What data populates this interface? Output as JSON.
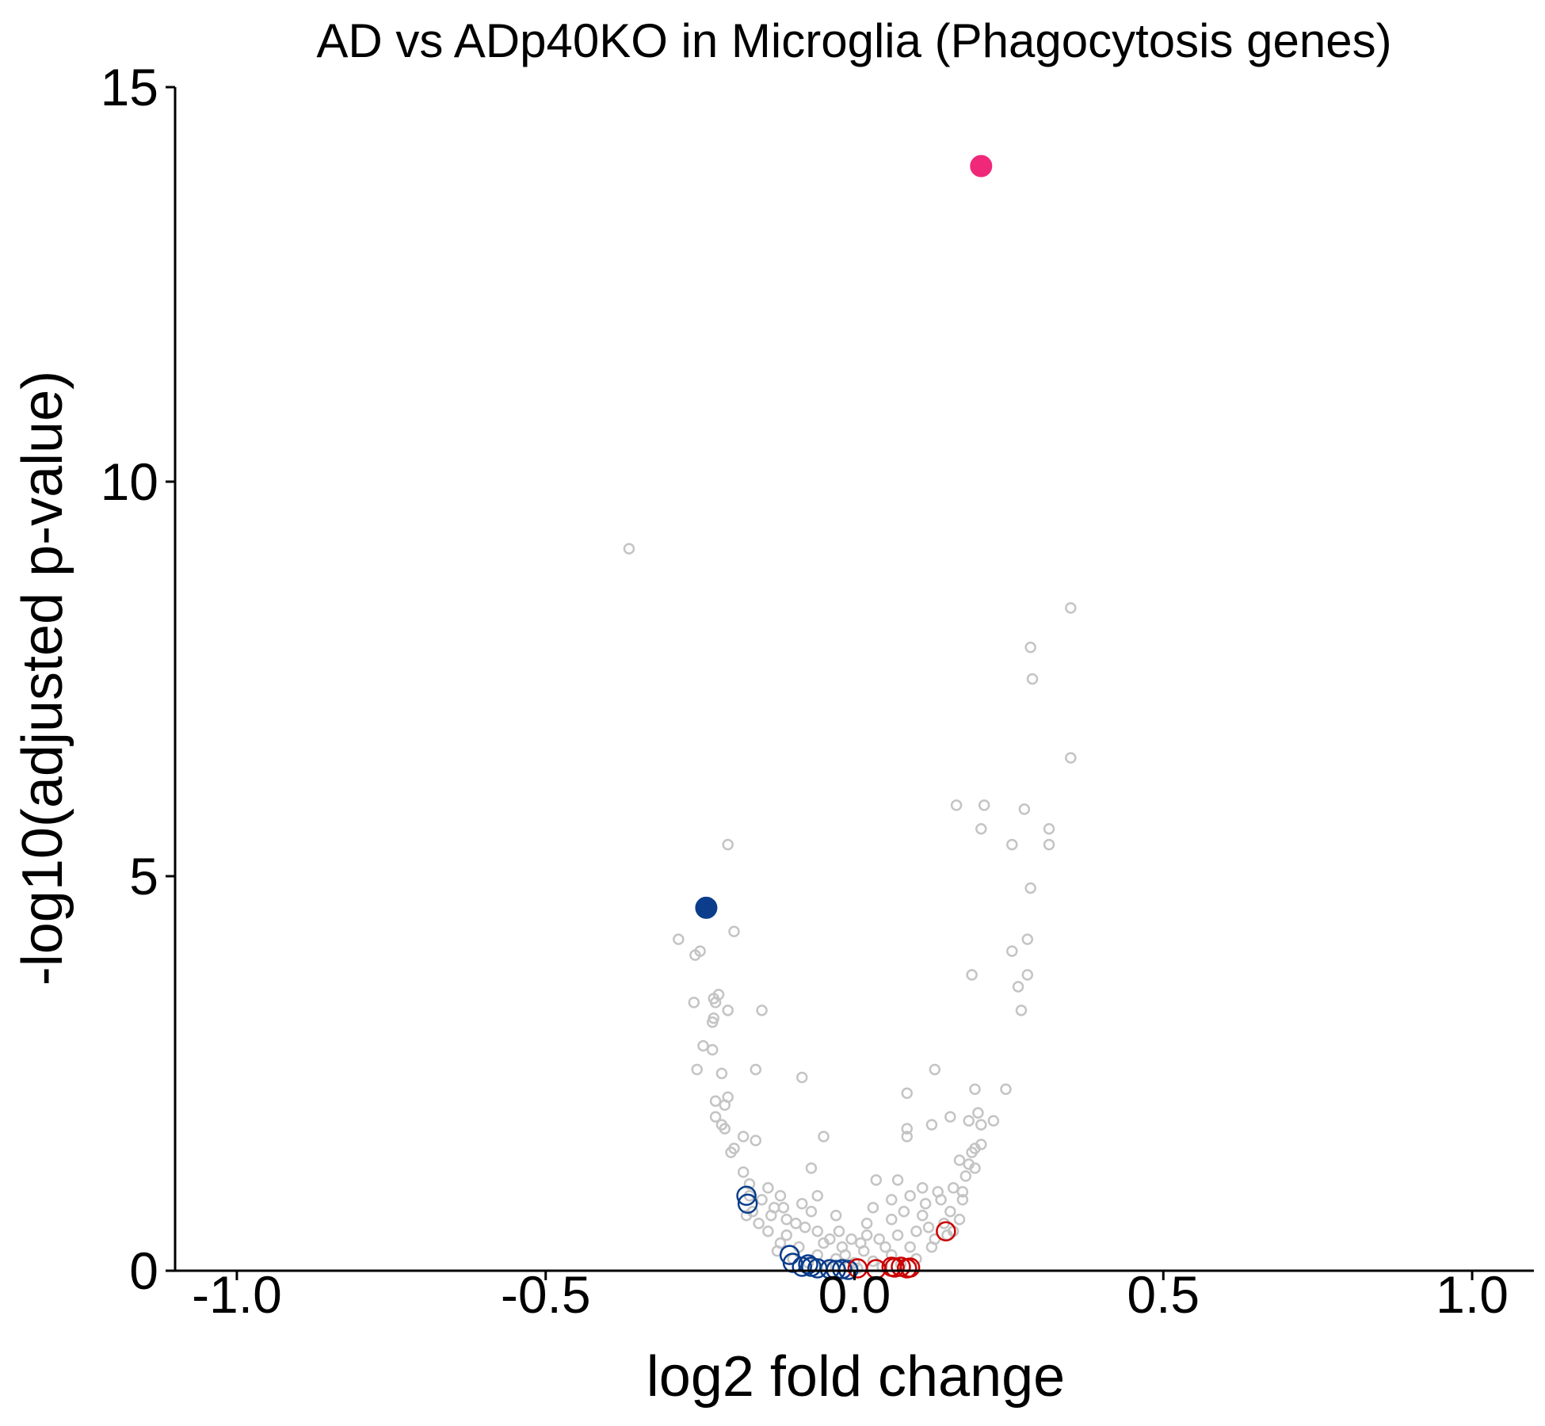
{
  "chart_data": {
    "type": "scatter",
    "title": "AD vs ADp40KO in Microglia (Phagocytosis genes)",
    "xlabel": "log2 fold change",
    "ylabel": "-log10(adjusted p-value)",
    "xlim": [
      -1.1,
      1.1
    ],
    "ylim": [
      0,
      15
    ],
    "x_ticks": [
      -1.0,
      -0.5,
      0.0,
      0.5,
      1.0
    ],
    "x_tick_labels": [
      "-1.0",
      "-0.5",
      "0.0",
      "0.5",
      "1.0"
    ],
    "y_ticks": [
      0,
      5,
      10,
      15
    ],
    "y_tick_labels": [
      "0",
      "5",
      "10",
      "15"
    ],
    "grid": false,
    "legend": "none",
    "colors": {
      "background_genes": "#c4c4c4",
      "phagocytosis_down": "#0b3d8c",
      "phagocytosis_up": "#cc0000",
      "highlight_up": "#f0287a",
      "highlight_down": "#0b3d8c",
      "axis": "#000000"
    },
    "series": [
      {
        "role": "background_genes",
        "style": "hollow-small",
        "points": [
          [
            -0.365,
            9.15
          ],
          [
            0.35,
            8.4
          ],
          [
            0.285,
            7.9
          ],
          [
            0.288,
            7.5
          ],
          [
            0.35,
            6.5
          ],
          [
            0.165,
            5.9
          ],
          [
            0.21,
            5.9
          ],
          [
            0.275,
            5.85
          ],
          [
            0.205,
            5.6
          ],
          [
            0.315,
            5.6
          ],
          [
            0.255,
            5.4
          ],
          [
            0.315,
            5.4
          ],
          [
            -0.205,
            5.4
          ],
          [
            0.285,
            4.85
          ],
          [
            -0.195,
            4.3
          ],
          [
            -0.285,
            4.2
          ],
          [
            0.28,
            4.2
          ],
          [
            -0.25,
            4.05
          ],
          [
            -0.258,
            4.0
          ],
          [
            0.255,
            4.05
          ],
          [
            0.19,
            3.75
          ],
          [
            0.28,
            3.75
          ],
          [
            0.265,
            3.6
          ],
          [
            -0.22,
            3.5
          ],
          [
            -0.228,
            3.45
          ],
          [
            -0.26,
            3.4
          ],
          [
            -0.225,
            3.4
          ],
          [
            -0.205,
            3.3
          ],
          [
            -0.15,
            3.3
          ],
          [
            0.27,
            3.3
          ],
          [
            -0.228,
            3.2
          ],
          [
            -0.23,
            3.15
          ],
          [
            -0.245,
            2.85
          ],
          [
            -0.23,
            2.8
          ],
          [
            -0.255,
            2.55
          ],
          [
            -0.16,
            2.55
          ],
          [
            -0.215,
            2.5
          ],
          [
            0.13,
            2.55
          ],
          [
            -0.085,
            2.45
          ],
          [
            0.245,
            2.3
          ],
          [
            0.195,
            2.3
          ],
          [
            0.085,
            2.25
          ],
          [
            -0.205,
            2.2
          ],
          [
            -0.225,
            2.15
          ],
          [
            -0.21,
            2.1
          ],
          [
            0.2,
            2.0
          ],
          [
            -0.225,
            1.95
          ],
          [
            0.155,
            1.95
          ],
          [
            0.185,
            1.9
          ],
          [
            0.225,
            1.9
          ],
          [
            -0.215,
            1.85
          ],
          [
            0.205,
            1.85
          ],
          [
            -0.21,
            1.8
          ],
          [
            0.125,
            1.85
          ],
          [
            0.085,
            1.8
          ],
          [
            -0.05,
            1.7
          ],
          [
            -0.18,
            1.7
          ],
          [
            0.085,
            1.7
          ],
          [
            0.205,
            1.6
          ],
          [
            0.19,
            1.5
          ],
          [
            -0.2,
            1.5
          ],
          [
            -0.16,
            1.65
          ],
          [
            0.17,
            1.4
          ],
          [
            -0.07,
            1.3
          ],
          [
            0.195,
            1.3
          ],
          [
            0.035,
            1.15
          ],
          [
            0.07,
            1.15
          ],
          [
            0.11,
            1.05
          ],
          [
            -0.12,
            0.95
          ],
          [
            0.14,
            0.9
          ],
          [
            -0.07,
            0.75
          ],
          [
            0.08,
            0.75
          ],
          [
            0.03,
            0.8
          ],
          [
            0.175,
            0.9
          ],
          [
            -0.03,
            0.7
          ],
          [
            0.02,
            0.6
          ],
          [
            0.06,
            0.65
          ],
          [
            -0.135,
            0.7
          ],
          [
            0.155,
            0.75
          ],
          [
            -0.08,
            0.55
          ],
          [
            0.1,
            0.5
          ],
          [
            -0.11,
            0.45
          ],
          [
            0.12,
            0.55
          ],
          [
            -0.04,
            0.4
          ],
          [
            0.04,
            0.4
          ],
          [
            -0.15,
            0.9
          ],
          [
            -0.13,
            0.8
          ],
          [
            -0.17,
            1.1
          ],
          [
            -0.095,
            0.6
          ],
          [
            0.16,
            1.05
          ],
          [
            0.18,
            1.2
          ],
          [
            -0.06,
            0.5
          ],
          [
            0.07,
            0.45
          ],
          [
            -0.02,
            0.3
          ],
          [
            0.015,
            0.25
          ],
          [
            -0.09,
            0.3
          ],
          [
            0.09,
            0.3
          ],
          [
            -0.06,
            0.2
          ],
          [
            0.06,
            0.2
          ],
          [
            -0.03,
            0.15
          ],
          [
            0.03,
            0.12
          ],
          [
            -0.01,
            0.05
          ],
          [
            0.005,
            0.03
          ],
          [
            -0.12,
            0.35
          ],
          [
            0.13,
            0.4
          ],
          [
            -0.14,
            0.5
          ],
          [
            0.145,
            0.6
          ],
          [
            -0.17,
            0.95
          ],
          [
            0.175,
            1.0
          ],
          [
            -0.18,
            1.25
          ],
          [
            0.185,
            1.35
          ],
          [
            -0.195,
            1.55
          ],
          [
            0.195,
            1.55
          ],
          [
            -0.1,
            0.15
          ],
          [
            0.1,
            0.15
          ],
          [
            -0.075,
            0.1
          ],
          [
            0.075,
            0.08
          ],
          [
            -0.045,
            0.05
          ],
          [
            0.045,
            0.05
          ],
          [
            -0.11,
            0.65
          ],
          [
            0.11,
            0.7
          ],
          [
            -0.05,
            0.35
          ],
          [
            0.05,
            0.3
          ],
          [
            0.0,
            0.1
          ],
          [
            -0.015,
            0.2
          ],
          [
            0.15,
            0.45
          ],
          [
            -0.155,
            0.6
          ],
          [
            0.16,
            0.5
          ],
          [
            -0.165,
            0.75
          ],
          [
            0.125,
            0.3
          ],
          [
            -0.125,
            0.25
          ],
          [
            0.02,
            0.45
          ],
          [
            -0.025,
            0.5
          ],
          [
            0.09,
            0.95
          ],
          [
            -0.085,
            0.85
          ],
          [
            0.06,
            0.9
          ],
          [
            -0.06,
            0.95
          ],
          [
            0.01,
            0.35
          ],
          [
            -0.005,
            0.4
          ],
          [
            0.135,
            1.0
          ],
          [
            -0.14,
            1.05
          ],
          [
            0.115,
            0.85
          ],
          [
            -0.115,
            0.8
          ],
          [
            0.17,
            0.65
          ],
          [
            -0.175,
            0.7
          ]
        ]
      },
      {
        "role": "phagocytosis_down",
        "style": "hollow-large",
        "points": [
          [
            -0.175,
            0.95
          ],
          [
            -0.173,
            0.85
          ],
          [
            -0.105,
            0.2
          ],
          [
            -0.1,
            0.1
          ],
          [
            -0.085,
            0.05
          ],
          [
            -0.075,
            0.08
          ],
          [
            -0.07,
            0.05
          ],
          [
            -0.06,
            0.03
          ],
          [
            -0.04,
            0.02
          ],
          [
            -0.03,
            0.01
          ],
          [
            -0.02,
            0.02
          ],
          [
            -0.01,
            0.01
          ]
        ]
      },
      {
        "role": "phagocytosis_up",
        "style": "hollow-large",
        "points": [
          [
            0.148,
            0.5
          ],
          [
            0.005,
            0.03
          ],
          [
            0.035,
            0.02
          ],
          [
            0.06,
            0.05
          ],
          [
            0.065,
            0.04
          ],
          [
            0.075,
            0.05
          ],
          [
            0.085,
            0.03
          ],
          [
            0.09,
            0.04
          ]
        ]
      },
      {
        "role": "highlight_up",
        "style": "filled-large",
        "points": [
          [
            0.205,
            14.0
          ]
        ]
      },
      {
        "role": "highlight_down",
        "style": "filled-large",
        "points": [
          [
            -0.24,
            4.6
          ]
        ]
      }
    ]
  }
}
